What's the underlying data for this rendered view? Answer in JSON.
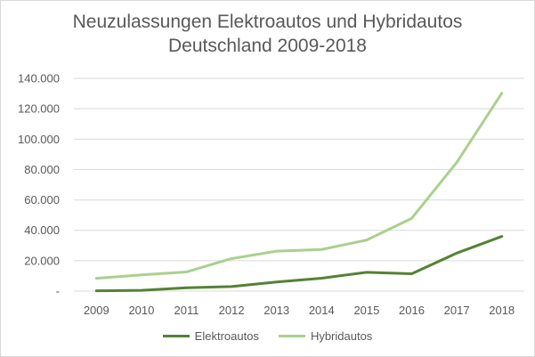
{
  "chart_data": {
    "type": "line",
    "title": "Neuzulassungen Elektroautos und Hybridautos Deutschland 2009-2018",
    "title_lines": [
      "Neuzulassungen Elektroautos und Hybridautos",
      "Deutschland 2009-2018"
    ],
    "categories": [
      "2009",
      "2010",
      "2011",
      "2012",
      "2013",
      "2014",
      "2015",
      "2016",
      "2017",
      "2018"
    ],
    "yticks": [
      "-",
      "20.000",
      "40.000",
      "60.000",
      "80.000",
      "100.000",
      "120.000",
      "140.000"
    ],
    "ylim": [
      0,
      140000
    ],
    "grid": true,
    "legend_position": "bottom",
    "series": [
      {
        "name": "Elektroautos",
        "color": "#548235",
        "values": [
          200,
          500,
          2200,
          3000,
          6000,
          8500,
          12400,
          11400,
          25000,
          36000
        ]
      },
      {
        "name": "Hybridautos",
        "color": "#a9d18e",
        "values": [
          8400,
          10700,
          12600,
          21400,
          26300,
          27400,
          33600,
          47900,
          84700,
          130200
        ]
      }
    ]
  }
}
